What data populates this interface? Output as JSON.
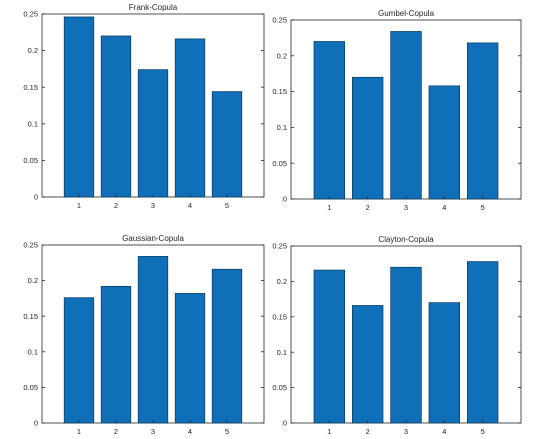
{
  "colors": {
    "bar": "#0f6fb8",
    "axis": "#262626"
  },
  "chart_data": [
    {
      "type": "bar",
      "title": "Frank-Copula",
      "categories": [
        "1",
        "2",
        "3",
        "4",
        "5"
      ],
      "values": [
        0.246,
        0.22,
        0.174,
        0.216,
        0.144
      ],
      "ylim": [
        0,
        0.25
      ],
      "yticks": [
        0,
        0.05,
        0.1,
        0.15,
        0.2,
        0.25
      ],
      "ytick_labels": [
        "0",
        "0.05",
        "0.1",
        "0.15",
        "0.2",
        "0.25"
      ],
      "xlabel": "",
      "ylabel": "",
      "grid": false,
      "legend": "none"
    },
    {
      "type": "bar",
      "title": "Gumbel-Copula",
      "categories": [
        "1",
        "2",
        "3",
        "4",
        "5"
      ],
      "values": [
        0.22,
        0.17,
        0.234,
        0.158,
        0.218
      ],
      "ylim": [
        0,
        0.25
      ],
      "yticks": [
        0,
        0.05,
        0.1,
        0.15,
        0.2,
        0.25
      ],
      "ytick_labels": [
        "0",
        "0.05",
        "0.1",
        "0.15",
        "0.2",
        "0.25"
      ],
      "xlabel": "",
      "ylabel": "",
      "grid": false,
      "legend": "none"
    },
    {
      "type": "bar",
      "title": "Gaussian-Copula",
      "categories": [
        "1",
        "2",
        "3",
        "4",
        "5"
      ],
      "values": [
        0.176,
        0.192,
        0.234,
        0.182,
        0.216
      ],
      "ylim": [
        0,
        0.25
      ],
      "yticks": [
        0,
        0.05,
        0.1,
        0.15,
        0.2,
        0.25
      ],
      "ytick_labels": [
        "0",
        "0.05",
        "0.1",
        "0.15",
        "0.2",
        "0.25"
      ],
      "xlabel": "",
      "ylabel": "",
      "grid": false,
      "legend": "none"
    },
    {
      "type": "bar",
      "title": "Clayton-Copula",
      "categories": [
        "1",
        "2",
        "3",
        "4",
        "5"
      ],
      "values": [
        0.216,
        0.166,
        0.22,
        0.17,
        0.228
      ],
      "ylim": [
        0,
        0.25
      ],
      "yticks": [
        0,
        0.05,
        0.1,
        0.15,
        0.2,
        0.25
      ],
      "ytick_labels": [
        "0",
        "0.05",
        "0.1",
        "0.15",
        "0.2",
        "0.25"
      ],
      "xlabel": "",
      "ylabel": "",
      "grid": false,
      "legend": "none"
    }
  ]
}
